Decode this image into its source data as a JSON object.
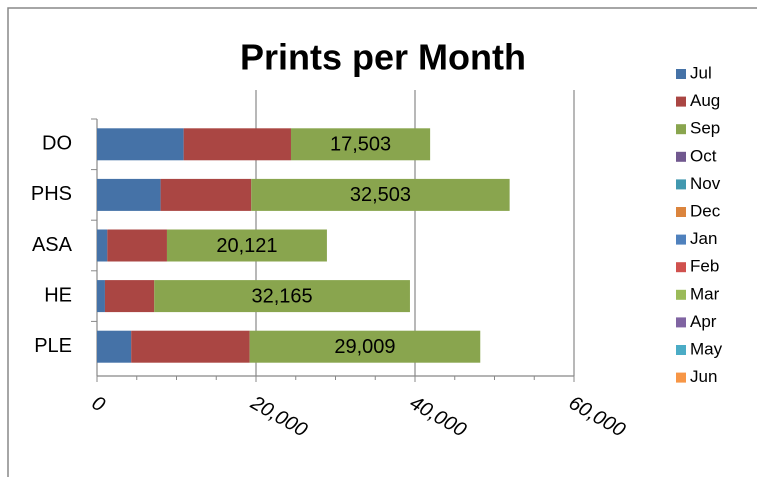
{
  "chart_data": {
    "type": "stacked-bar-horizontal",
    "title": "Prints per Month",
    "categories": [
      "DO",
      "PHS",
      "ASA",
      "HE",
      "PLE"
    ],
    "series": [
      {
        "name": "Jul",
        "color": "#4572a7",
        "values": [
          10900,
          8000,
          1300,
          1000,
          4300
        ]
      },
      {
        "name": "Aug",
        "color": "#aa4643",
        "values": [
          13500,
          11400,
          7500,
          6200,
          14900
        ]
      },
      {
        "name": "Sep",
        "color": "#89a54e",
        "values": [
          17503,
          32503,
          20121,
          32165,
          29009
        ],
        "value_labels": [
          "17,503",
          "32,503",
          "20,121",
          "32,165",
          "29,009"
        ]
      },
      {
        "name": "Oct",
        "color": "#71588f",
        "values": [
          0,
          0,
          0,
          0,
          0
        ]
      },
      {
        "name": "Nov",
        "color": "#4198af",
        "values": [
          0,
          0,
          0,
          0,
          0
        ]
      },
      {
        "name": "Dec",
        "color": "#db843d",
        "values": [
          0,
          0,
          0,
          0,
          0
        ]
      },
      {
        "name": "Jan",
        "color": "#4f81bd",
        "values": [
          0,
          0,
          0,
          0,
          0
        ]
      },
      {
        "name": "Feb",
        "color": "#d0514e",
        "values": [
          0,
          0,
          0,
          0,
          0
        ]
      },
      {
        "name": "Mar",
        "color": "#9bbb59",
        "values": [
          0,
          0,
          0,
          0,
          0
        ]
      },
      {
        "name": "Apr",
        "color": "#8064a2",
        "values": [
          0,
          0,
          0,
          0,
          0
        ]
      },
      {
        "name": "May",
        "color": "#4bacc6",
        "values": [
          0,
          0,
          0,
          0,
          0
        ]
      },
      {
        "name": "Jun",
        "color": "#f79646",
        "values": [
          0,
          0,
          0,
          0,
          0
        ]
      }
    ],
    "xlim": [
      0,
      60000
    ],
    "xticks": [
      0,
      {
        "value": 20000,
        "label": "20,000"
      },
      {
        "value": 40000,
        "label": "40,000"
      },
      {
        "value": 60000,
        "label": "60,000"
      }
    ],
    "grid": true,
    "legend": "right"
  }
}
